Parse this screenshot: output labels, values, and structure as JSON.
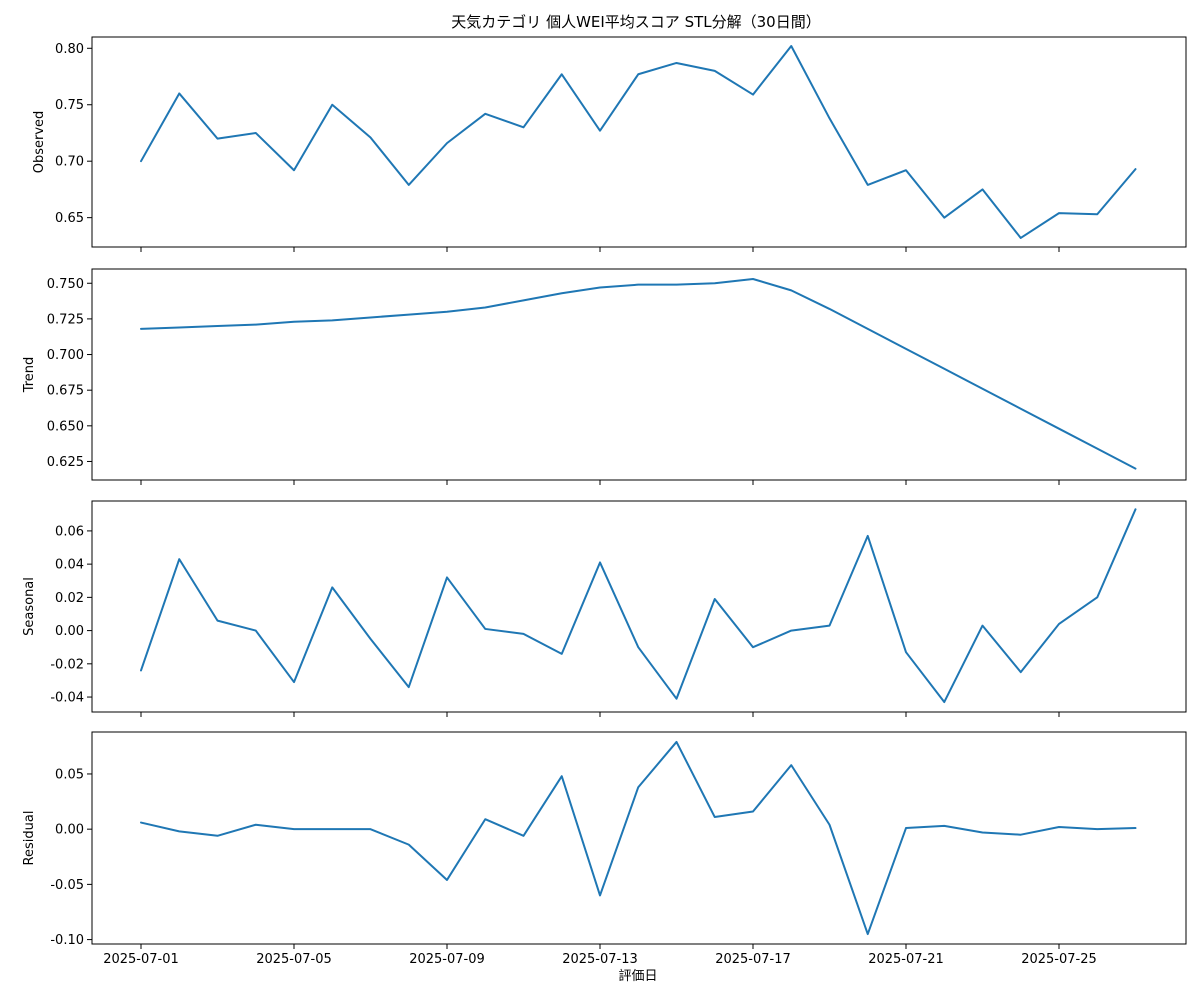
{
  "chart_data": {
    "type": "line",
    "title": "天気カテゴリ 個人WEI平均スコア STL分解（30日間）",
    "xlabel": "評価日",
    "line_color": "#1f77b4",
    "x": [
      "2025-07-01",
      "2025-07-02",
      "2025-07-03",
      "2025-07-04",
      "2025-07-05",
      "2025-07-06",
      "2025-07-07",
      "2025-07-08",
      "2025-07-09",
      "2025-07-10",
      "2025-07-11",
      "2025-07-12",
      "2025-07-13",
      "2025-07-14",
      "2025-07-15",
      "2025-07-16",
      "2025-07-17",
      "2025-07-18",
      "2025-07-19",
      "2025-07-20",
      "2025-07-21",
      "2025-07-22",
      "2025-07-23",
      "2025-07-24",
      "2025-07-25",
      "2025-07-26",
      "2025-07-27"
    ],
    "x_ticks": [
      "2025-07-01",
      "2025-07-05",
      "2025-07-09",
      "2025-07-13",
      "2025-07-17",
      "2025-07-21",
      "2025-07-25"
    ],
    "panels": [
      {
        "ylabel": "Observed",
        "ylim": [
          0.624,
          0.81
        ],
        "yticks": [
          "0.65",
          "0.70",
          "0.75",
          "0.80"
        ],
        "values": [
          0.7,
          0.76,
          0.72,
          0.725,
          0.692,
          0.75,
          0.721,
          0.679,
          0.716,
          0.742,
          0.73,
          0.777,
          0.727,
          0.777,
          0.787,
          0.78,
          0.759,
          0.802,
          0.738,
          0.679,
          0.692,
          0.65,
          0.675,
          0.632,
          0.654,
          0.653,
          0.693
        ]
      },
      {
        "ylabel": "Trend",
        "ylim": [
          0.612,
          0.76
        ],
        "yticks": [
          "0.625",
          "0.650",
          "0.675",
          "0.700",
          "0.725",
          "0.750"
        ],
        "values": [
          0.718,
          0.719,
          0.72,
          0.721,
          0.723,
          0.724,
          0.726,
          0.728,
          0.73,
          0.733,
          0.738,
          0.743,
          0.747,
          0.749,
          0.749,
          0.75,
          0.753,
          0.745,
          0.732,
          0.718,
          0.704,
          0.69,
          0.676,
          0.662,
          0.648,
          0.634,
          0.62
        ]
      },
      {
        "ylabel": "Seasonal",
        "ylim": [
          -0.049,
          0.078
        ],
        "yticks": [
          "-0.04",
          "-0.02",
          "0.00",
          "0.02",
          "0.04",
          "0.06"
        ],
        "values": [
          -0.024,
          0.043,
          0.006,
          0.0,
          -0.031,
          0.026,
          -0.005,
          -0.034,
          0.032,
          0.001,
          -0.002,
          -0.014,
          0.041,
          -0.01,
          -0.041,
          0.019,
          -0.01,
          0.0,
          0.003,
          0.057,
          -0.013,
          -0.043,
          0.003,
          -0.025,
          0.004,
          0.02,
          0.073
        ]
      },
      {
        "ylabel": "Residual",
        "ylim": [
          -0.104,
          0.088
        ],
        "yticks": [
          "-0.10",
          "-0.05",
          "0.00",
          "0.05"
        ],
        "values": [
          0.006,
          -0.002,
          -0.006,
          0.004,
          0.0,
          0.0,
          0.0,
          -0.014,
          -0.046,
          0.009,
          -0.006,
          0.048,
          -0.06,
          0.038,
          0.079,
          0.011,
          0.016,
          0.058,
          0.004,
          -0.095,
          0.001,
          0.003,
          -0.003,
          -0.005,
          0.002,
          0.0,
          0.001
        ]
      }
    ]
  }
}
